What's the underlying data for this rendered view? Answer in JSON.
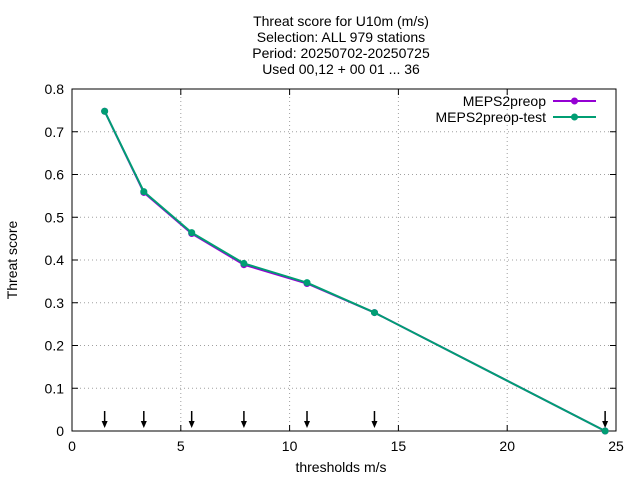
{
  "chart_data": {
    "type": "line",
    "title_lines": [
      "Threat score  for U10m (m/s)",
      "Selection: ALL    979 stations",
      "Period: 20250702-20250725",
      "Used 00,12 + 00 01 ... 36"
    ],
    "xlabel": "thresholds m/s",
    "ylabel": "Threat score",
    "xlim": [
      0,
      25
    ],
    "ylim": [
      0,
      0.8
    ],
    "xticks": [
      0,
      5,
      10,
      15,
      20,
      25
    ],
    "yticks": [
      0,
      0.1,
      0.2,
      0.3,
      0.4,
      0.5,
      0.6,
      0.7,
      0.8
    ],
    "xtick_labels": [
      "0",
      "5",
      "10",
      "15",
      "20",
      "25"
    ],
    "ytick_labels": [
      "0",
      "0.1",
      "0.2",
      "0.3",
      "0.4",
      "0.5",
      "0.6",
      "0.7",
      "0.8"
    ],
    "grid": true,
    "legend_position": "top-right",
    "series": [
      {
        "name": "MEPS2preop",
        "color": "#9400d3",
        "x": [
          1.5,
          3.3,
          5.5,
          7.9,
          10.8,
          13.9,
          24.5
        ],
        "y": [
          0.748,
          0.558,
          0.462,
          0.389,
          0.345,
          0.277,
          0.0
        ]
      },
      {
        "name": "MEPS2preop-test",
        "color": "#009e73",
        "x": [
          1.5,
          3.3,
          5.5,
          7.9,
          10.8,
          13.9,
          24.5
        ],
        "y": [
          0.748,
          0.56,
          0.464,
          0.392,
          0.347,
          0.277,
          0.0
        ]
      }
    ],
    "arrow_markers_x": [
      1.5,
      3.3,
      5.5,
      7.9,
      10.8,
      13.9,
      24.5
    ]
  }
}
